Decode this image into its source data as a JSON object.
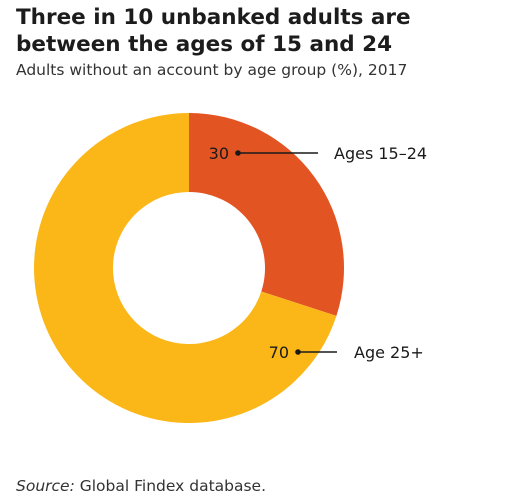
{
  "title": "Three in 10 unbanked adults are between the ages of 15 and 24",
  "subtitle": "Adults without an account by age group (%), 2017",
  "source": {
    "label": "Source:",
    "text": " Global Findex database."
  },
  "chart_data": {
    "type": "pie",
    "variant": "donut",
    "title": "Three in 10 unbanked adults are between the ages of 15 and 24",
    "subtitle": "Adults without an account by age group (%), 2017",
    "slices": [
      {
        "label": "Ages 15–24",
        "value": 30,
        "value_label": "30",
        "color": "#e35423"
      },
      {
        "label": "Age 25+",
        "value": 70,
        "value_label": "70",
        "color": "#fbb718"
      }
    ]
  }
}
